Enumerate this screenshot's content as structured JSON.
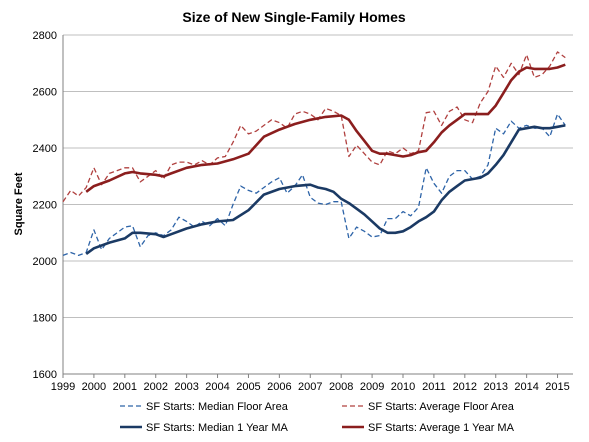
{
  "chart_data": {
    "type": "line",
    "title": "Size of New Single-Family Homes",
    "xlabel": "",
    "ylabel": "Square Feet",
    "xlim": [
      1999,
      2015.5
    ],
    "ylim": [
      1600,
      2800
    ],
    "yticks": [
      1600,
      1800,
      2000,
      2200,
      2400,
      2600,
      2800
    ],
    "xticks": [
      "1999",
      "2000",
      "2001",
      "2002",
      "2003",
      "2004",
      "2005",
      "2006",
      "2007",
      "2008",
      "2009",
      "2010",
      "2011",
      "2012",
      "2013",
      "2014",
      "2015"
    ],
    "grid": "horizontal",
    "legend_position": "bottom",
    "colors": {
      "median": "#2e64a8",
      "median_ma": "#1b3a64",
      "average": "#b0403f",
      "average_ma": "#8b1e1e",
      "grid": "#bfbfbf",
      "axis": "#808080"
    },
    "series": [
      {
        "name": "SF Starts: Median Floor Area",
        "style": "dashed",
        "color_key": "median",
        "x": [
          1999.0,
          1999.25,
          1999.5,
          1999.75,
          2000.0,
          2000.25,
          2000.5,
          2000.75,
          2001.0,
          2001.25,
          2001.5,
          2001.75,
          2002.0,
          2002.25,
          2002.5,
          2002.75,
          2003.0,
          2003.25,
          2003.5,
          2003.75,
          2004.0,
          2004.25,
          2004.5,
          2004.75,
          2005.0,
          2005.25,
          2005.5,
          2005.75,
          2006.0,
          2006.25,
          2006.5,
          2006.75,
          2007.0,
          2007.25,
          2007.5,
          2007.75,
          2008.0,
          2008.25,
          2008.5,
          2008.75,
          2009.0,
          2009.25,
          2009.5,
          2009.75,
          2010.0,
          2010.25,
          2010.5,
          2010.75,
          2011.0,
          2011.25,
          2011.5,
          2011.75,
          2012.0,
          2012.25,
          2012.5,
          2012.75,
          2013.0,
          2013.25,
          2013.5,
          2013.75,
          2014.0,
          2014.25,
          2014.5,
          2014.75,
          2015.0,
          2015.25
        ],
        "values": [
          2020,
          2030,
          2020,
          2030,
          2110,
          2040,
          2080,
          2100,
          2120,
          2125,
          2050,
          2090,
          2100,
          2090,
          2110,
          2155,
          2140,
          2120,
          2140,
          2125,
          2150,
          2125,
          2200,
          2265,
          2250,
          2240,
          2260,
          2280,
          2295,
          2240,
          2265,
          2305,
          2225,
          2205,
          2200,
          2210,
          2210,
          2080,
          2120,
          2105,
          2085,
          2090,
          2150,
          2150,
          2175,
          2160,
          2190,
          2330,
          2275,
          2240,
          2300,
          2320,
          2320,
          2290,
          2300,
          2340,
          2470,
          2450,
          2495,
          2470,
          2480,
          2470,
          2470,
          2440,
          2520,
          2480
        ]
      },
      {
        "name": "SF Starts: Average Floor Area",
        "style": "dashed",
        "color_key": "average",
        "x": [
          1999.0,
          1999.25,
          1999.5,
          1999.75,
          2000.0,
          2000.25,
          2000.5,
          2000.75,
          2001.0,
          2001.25,
          2001.5,
          2001.75,
          2002.0,
          2002.25,
          2002.5,
          2002.75,
          2003.0,
          2003.25,
          2003.5,
          2003.75,
          2004.0,
          2004.25,
          2004.5,
          2004.75,
          2005.0,
          2005.25,
          2005.5,
          2005.75,
          2006.0,
          2006.25,
          2006.5,
          2006.75,
          2007.0,
          2007.25,
          2007.5,
          2007.75,
          2008.0,
          2008.25,
          2008.5,
          2008.75,
          2009.0,
          2009.25,
          2009.5,
          2009.75,
          2010.0,
          2010.25,
          2010.5,
          2010.75,
          2011.0,
          2011.25,
          2011.5,
          2011.75,
          2012.0,
          2012.25,
          2012.5,
          2012.75,
          2013.0,
          2013.25,
          2013.5,
          2013.75,
          2014.0,
          2014.25,
          2014.5,
          2014.75,
          2015.0,
          2015.25
        ],
        "values": [
          2210,
          2250,
          2230,
          2260,
          2330,
          2270,
          2310,
          2320,
          2330,
          2330,
          2280,
          2300,
          2320,
          2290,
          2340,
          2350,
          2350,
          2340,
          2355,
          2340,
          2365,
          2370,
          2420,
          2480,
          2450,
          2460,
          2480,
          2500,
          2490,
          2470,
          2520,
          2530,
          2520,
          2500,
          2540,
          2530,
          2515,
          2370,
          2410,
          2380,
          2350,
          2340,
          2390,
          2380,
          2400,
          2380,
          2390,
          2525,
          2530,
          2480,
          2530,
          2545,
          2500,
          2490,
          2560,
          2600,
          2690,
          2650,
          2700,
          2660,
          2730,
          2650,
          2660,
          2690,
          2740,
          2720
        ]
      },
      {
        "name": "SF Starts: Median 1 Year MA",
        "style": "solid",
        "color_key": "median_ma",
        "x": [
          1999.75,
          2000.0,
          2000.5,
          2001.0,
          2001.25,
          2001.5,
          2002.0,
          2002.25,
          2002.5,
          2003.0,
          2003.5,
          2004.0,
          2004.5,
          2005.0,
          2005.5,
          2006.0,
          2006.5,
          2007.0,
          2007.25,
          2007.5,
          2007.75,
          2008.0,
          2008.25,
          2008.5,
          2008.75,
          2009.0,
          2009.25,
          2009.5,
          2009.75,
          2010.0,
          2010.25,
          2010.5,
          2010.75,
          2011.0,
          2011.25,
          2011.5,
          2011.75,
          2012.0,
          2012.25,
          2012.5,
          2012.75,
          2013.0,
          2013.25,
          2013.5,
          2013.75,
          2014.0,
          2014.25,
          2014.5,
          2014.75,
          2015.0,
          2015.25
        ],
        "values": [
          2025,
          2045,
          2065,
          2080,
          2100,
          2100,
          2095,
          2085,
          2095,
          2115,
          2130,
          2140,
          2145,
          2180,
          2235,
          2255,
          2265,
          2270,
          2260,
          2255,
          2245,
          2220,
          2205,
          2185,
          2165,
          2140,
          2115,
          2100,
          2100,
          2105,
          2120,
          2140,
          2155,
          2175,
          2215,
          2245,
          2265,
          2285,
          2290,
          2295,
          2310,
          2340,
          2375,
          2420,
          2465,
          2470,
          2475,
          2470,
          2470,
          2475,
          2480
        ]
      },
      {
        "name": "SF Starts: Average 1 Year MA",
        "style": "solid",
        "color_key": "average_ma",
        "x": [
          1999.75,
          2000.0,
          2000.5,
          2001.0,
          2001.25,
          2001.5,
          2002.0,
          2002.25,
          2002.5,
          2003.0,
          2003.5,
          2004.0,
          2004.5,
          2005.0,
          2005.5,
          2006.0,
          2006.5,
          2007.0,
          2007.5,
          2008.0,
          2008.25,
          2008.5,
          2008.75,
          2009.0,
          2009.25,
          2009.5,
          2009.75,
          2010.0,
          2010.25,
          2010.5,
          2010.75,
          2011.0,
          2011.25,
          2011.5,
          2011.75,
          2012.0,
          2012.25,
          2012.5,
          2012.75,
          2013.0,
          2013.25,
          2013.5,
          2013.75,
          2014.0,
          2014.25,
          2014.5,
          2014.75,
          2015.0,
          2015.25
        ],
        "values": [
          2245,
          2265,
          2285,
          2310,
          2315,
          2310,
          2305,
          2300,
          2310,
          2330,
          2340,
          2345,
          2360,
          2380,
          2440,
          2465,
          2485,
          2500,
          2510,
          2515,
          2500,
          2460,
          2425,
          2390,
          2380,
          2380,
          2375,
          2370,
          2375,
          2385,
          2390,
          2420,
          2455,
          2480,
          2500,
          2520,
          2520,
          2520,
          2520,
          2550,
          2595,
          2640,
          2670,
          2685,
          2680,
          2680,
          2680,
          2685,
          2695
        ]
      }
    ]
  }
}
